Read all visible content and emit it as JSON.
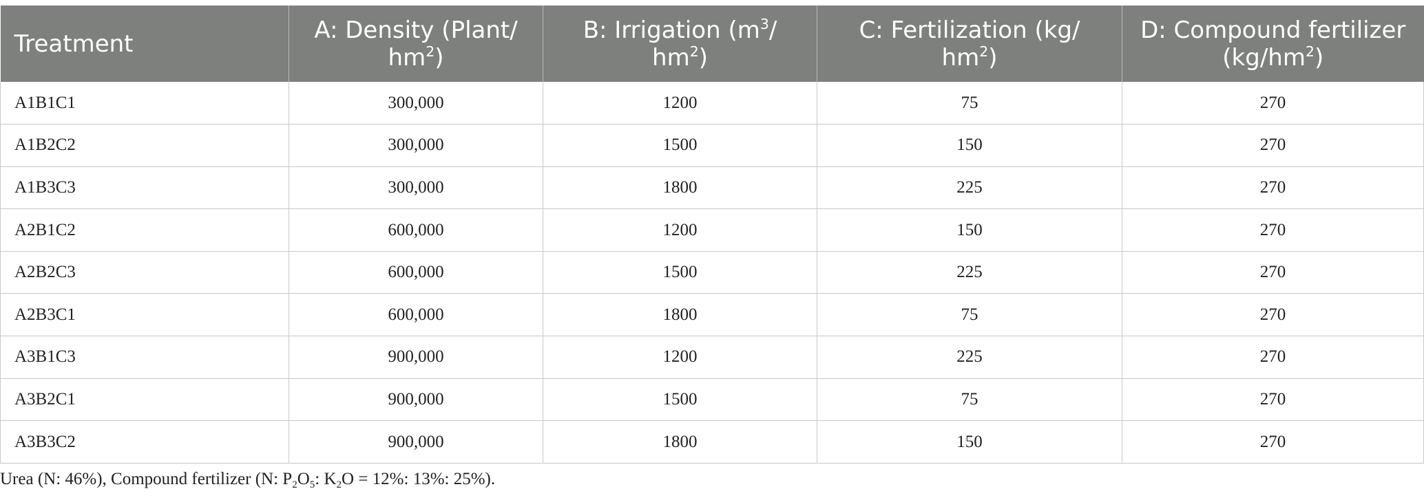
{
  "table": {
    "headers": {
      "treatment": "Treatment",
      "density_line1": "A: Density (Plant/",
      "density_line2": "hm",
      "density_sup": "2",
      "density_close": ")",
      "irrigation_line1": "B: Irrigation (m",
      "irrigation_sup": "3",
      "irrigation_slash": "/",
      "irrigation_line2": "hm",
      "irrigation_sup2": "2",
      "irrigation_close": ")",
      "fert_line1": "C: Fertilization (kg/",
      "fert_line2": "hm",
      "fert_sup": "2",
      "fert_close": ")",
      "compound_line1": "D: Compound fertilizer",
      "compound_line2": "(kg/hm",
      "compound_sup": "2",
      "compound_close": ")"
    },
    "rows": [
      [
        "A1B1C1",
        "300,000",
        "1200",
        "75",
        "270"
      ],
      [
        "A1B2C2",
        "300,000",
        "1500",
        "150",
        "270"
      ],
      [
        "A1B3C3",
        "300,000",
        "1800",
        "225",
        "270"
      ],
      [
        "A2B1C2",
        "600,000",
        "1200",
        "150",
        "270"
      ],
      [
        "A2B2C3",
        "600,000",
        "1500",
        "225",
        "270"
      ],
      [
        "A2B3C1",
        "600,000",
        "1800",
        "75",
        "270"
      ],
      [
        "A3B1C3",
        "900,000",
        "1200",
        "225",
        "270"
      ],
      [
        "A3B2C1",
        "900,000",
        "1500",
        "75",
        "270"
      ],
      [
        "A3B3C2",
        "900,000",
        "1800",
        "150",
        "270"
      ]
    ]
  },
  "footnote": {
    "part1": "Urea (N: 46%), Compound fertilizer (N: P",
    "sub1": "2",
    "part2": "O",
    "sub2": "5",
    "part3": ": K",
    "sub3": "2",
    "part4": "O = 12%: 13%: 25%)."
  },
  "colors": {
    "header_bg": "#7e807d",
    "header_text": "#ffffff",
    "grid": "#c8c8c8"
  }
}
